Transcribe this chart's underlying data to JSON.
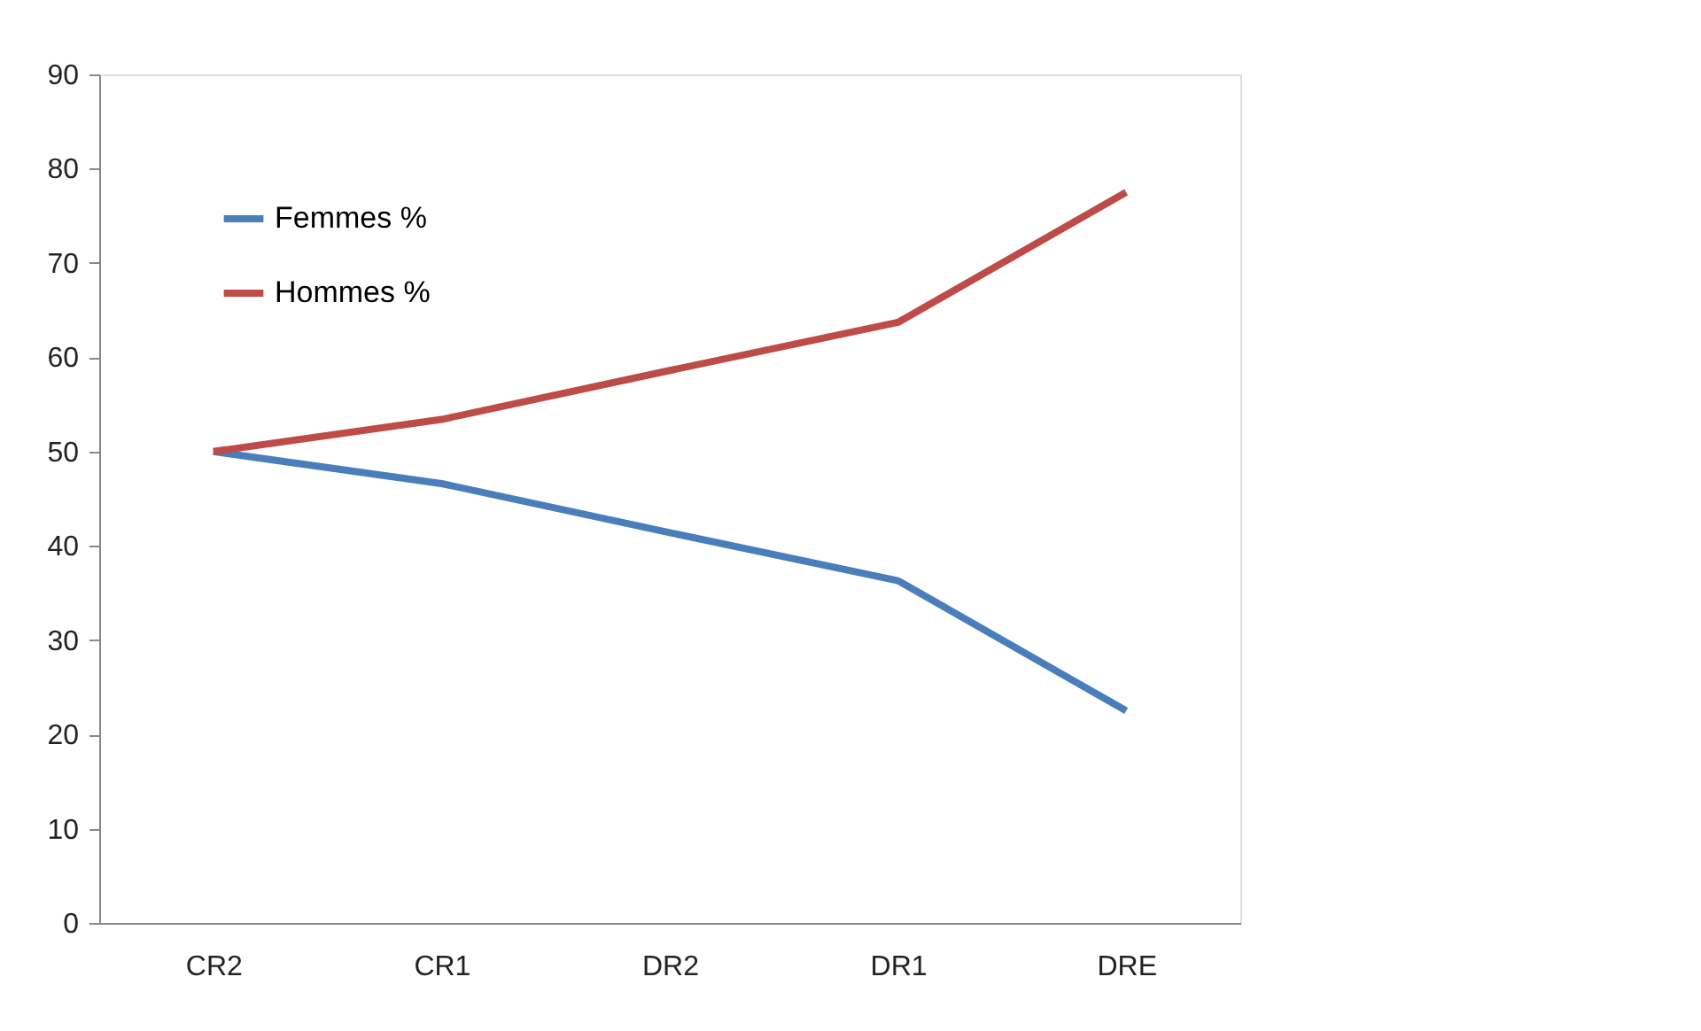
{
  "chart_data": {
    "type": "line",
    "categories": [
      "CR2",
      "CR1",
      "DR2",
      "DR1",
      "DRE"
    ],
    "series": [
      {
        "name": "Femmes %",
        "color": "#4a7ebb",
        "values": [
          50,
          46.6,
          41.4,
          36.3,
          22.5
        ]
      },
      {
        "name": "Hommes %",
        "color": "#be4b48",
        "values": [
          50,
          53.4,
          58.6,
          63.7,
          77.5
        ]
      }
    ],
    "ylim": [
      0,
      90
    ],
    "yticks": [
      0,
      10,
      20,
      30,
      40,
      50,
      60,
      70,
      80,
      90
    ],
    "grid": false,
    "legend": "top left",
    "marker": "none",
    "line_style": "solid"
  }
}
